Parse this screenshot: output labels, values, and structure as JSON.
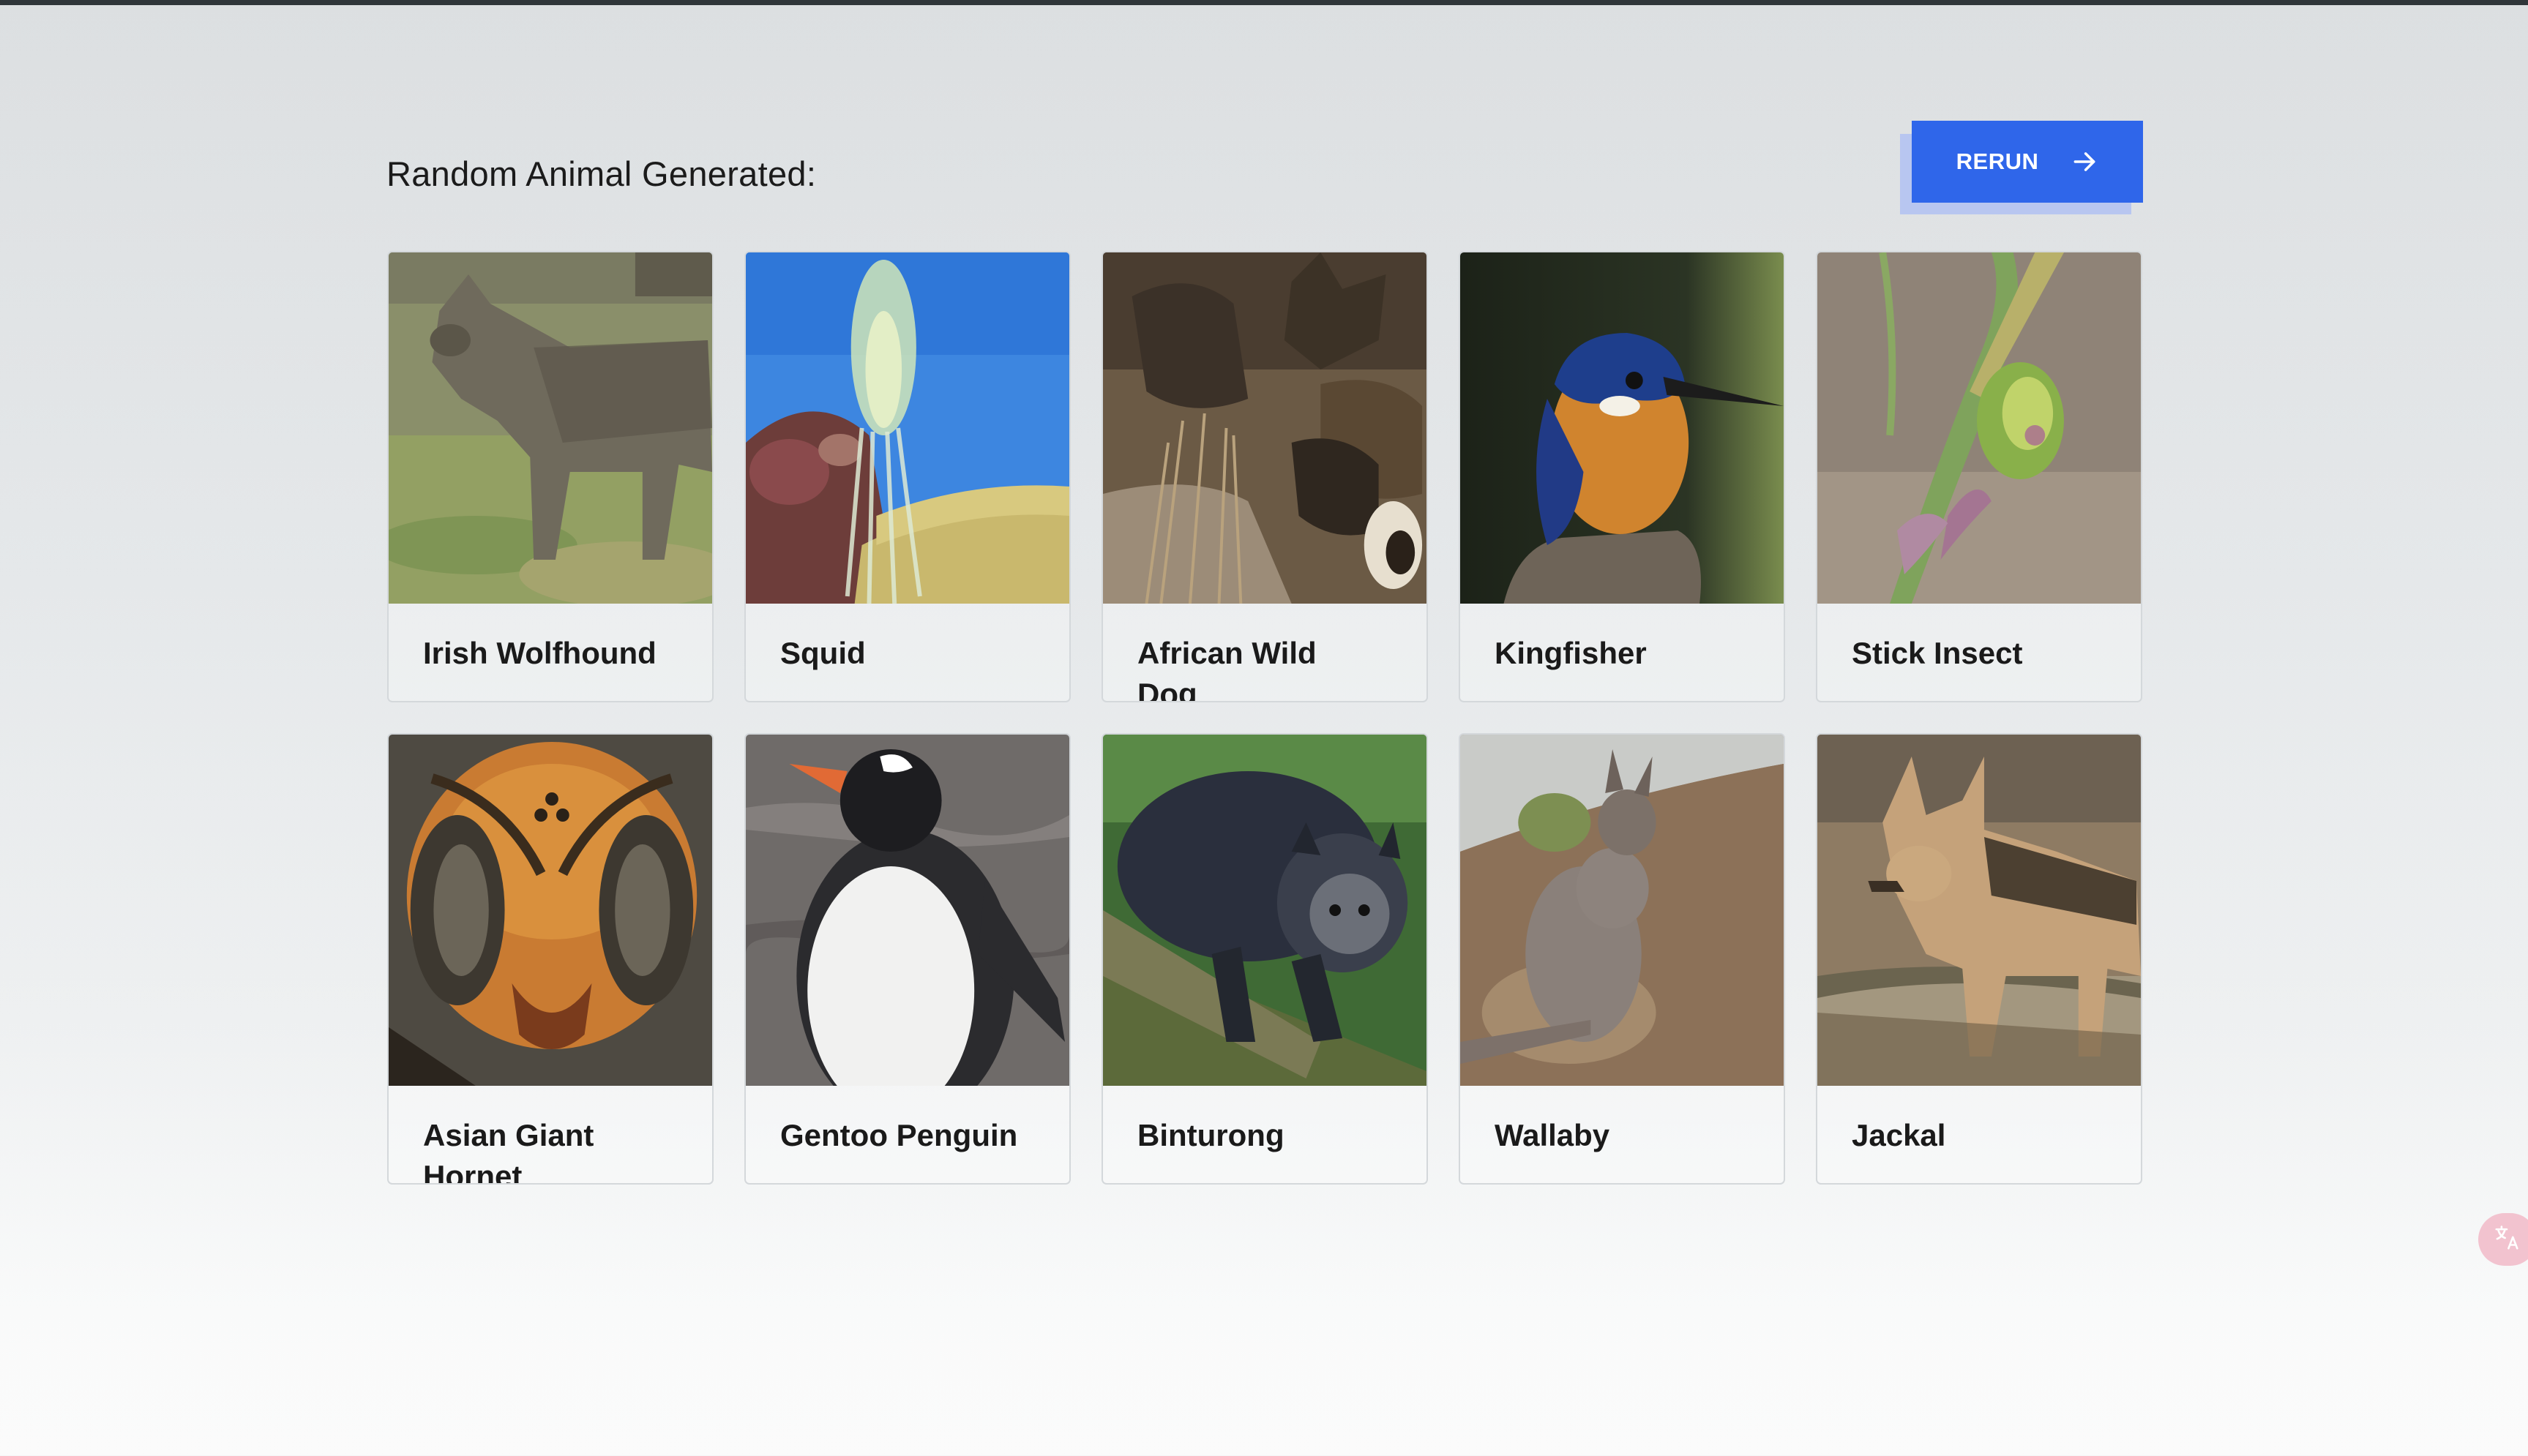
{
  "header": {
    "title": "Random Animal Generated:",
    "rerun_label": "RERUN"
  },
  "colors": {
    "accent": "#2f66ea",
    "button_shadow": "#b8c6f0",
    "top_rule": "#30363a"
  },
  "animals": [
    {
      "name": "Irish Wolfhound",
      "icon": "wolfhound-photo"
    },
    {
      "name": "Squid",
      "icon": "squid-photo"
    },
    {
      "name": "African Wild Dog",
      "icon": "wild-dog-photo"
    },
    {
      "name": "Kingfisher",
      "icon": "kingfisher-photo"
    },
    {
      "name": "Stick Insect",
      "icon": "stick-insect-photo"
    },
    {
      "name": "Asian Giant Hornet",
      "icon": "hornet-photo"
    },
    {
      "name": "Gentoo Penguin",
      "icon": "penguin-photo"
    },
    {
      "name": "Binturong",
      "icon": "binturong-photo"
    },
    {
      "name": "Wallaby",
      "icon": "wallaby-photo"
    },
    {
      "name": "Jackal",
      "icon": "jackal-photo"
    }
  ],
  "floating_widget": {
    "icon": "translate-icon"
  }
}
